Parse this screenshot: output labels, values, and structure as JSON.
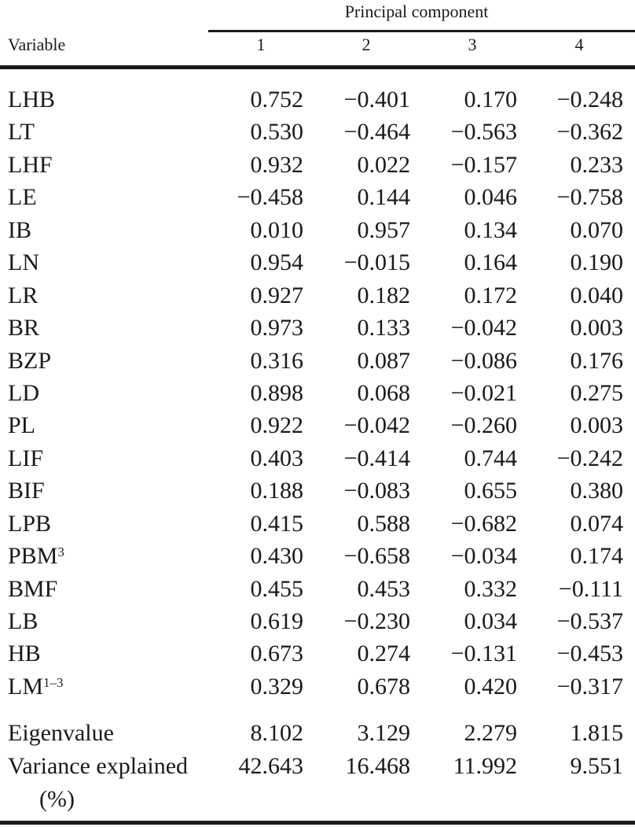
{
  "header": {
    "group": "Principal component",
    "variable": "Variable",
    "components": [
      "1",
      "2",
      "3",
      "4"
    ]
  },
  "rows": [
    {
      "label": "LHB",
      "values": [
        "0.752",
        "−0.401",
        "0.170",
        "−0.248"
      ]
    },
    {
      "label": "LT",
      "values": [
        "0.530",
        "−0.464",
        "−0.563",
        "−0.362"
      ]
    },
    {
      "label": "LHF",
      "values": [
        "0.932",
        "0.022",
        "−0.157",
        "0.233"
      ]
    },
    {
      "label": "LE",
      "values": [
        "−0.458",
        "0.144",
        "0.046",
        "−0.758"
      ]
    },
    {
      "label": "IB",
      "values": [
        "0.010",
        "0.957",
        "0.134",
        "0.070"
      ]
    },
    {
      "label": "LN",
      "values": [
        "0.954",
        "−0.015",
        "0.164",
        "0.190"
      ]
    },
    {
      "label": "LR",
      "values": [
        "0.927",
        "0.182",
        "0.172",
        "0.040"
      ]
    },
    {
      "label": "BR",
      "values": [
        "0.973",
        "0.133",
        "−0.042",
        "0.003"
      ]
    },
    {
      "label": "BZP",
      "values": [
        "0.316",
        "0.087",
        "−0.086",
        "0.176"
      ]
    },
    {
      "label": "LD",
      "values": [
        "0.898",
        "0.068",
        "−0.021",
        "0.275"
      ]
    },
    {
      "label": "PL",
      "values": [
        "0.922",
        "−0.042",
        "−0.260",
        "0.003"
      ]
    },
    {
      "label": "LIF",
      "values": [
        "0.403",
        "−0.414",
        "0.744",
        "−0.242"
      ]
    },
    {
      "label": "BIF",
      "values": [
        "0.188",
        "−0.083",
        "0.655",
        "0.380"
      ]
    },
    {
      "label": "LPB",
      "values": [
        "0.415",
        "0.588",
        "−0.682",
        "0.074"
      ]
    },
    {
      "label": "PBM",
      "sup": "3",
      "values": [
        "0.430",
        "−0.658",
        "−0.034",
        "0.174"
      ]
    },
    {
      "label": "BMF",
      "values": [
        "0.455",
        "0.453",
        "0.332",
        "−0.111"
      ]
    },
    {
      "label": "LB",
      "values": [
        "0.619",
        "−0.230",
        "0.034",
        "−0.537"
      ]
    },
    {
      "label": "HB",
      "values": [
        "0.673",
        "0.274",
        "−0.131",
        "−0.453"
      ]
    },
    {
      "label": "LM",
      "sup": "1–3",
      "values": [
        "0.329",
        "0.678",
        "0.420",
        "−0.317"
      ]
    }
  ],
  "summary": [
    {
      "label": "Eigenvalue",
      "values": [
        "8.102",
        "3.129",
        "2.279",
        "1.815"
      ]
    },
    {
      "label": "Variance explained (%)",
      "values": [
        "42.643",
        "16.468",
        "11.992",
        "9.551"
      ]
    }
  ]
}
